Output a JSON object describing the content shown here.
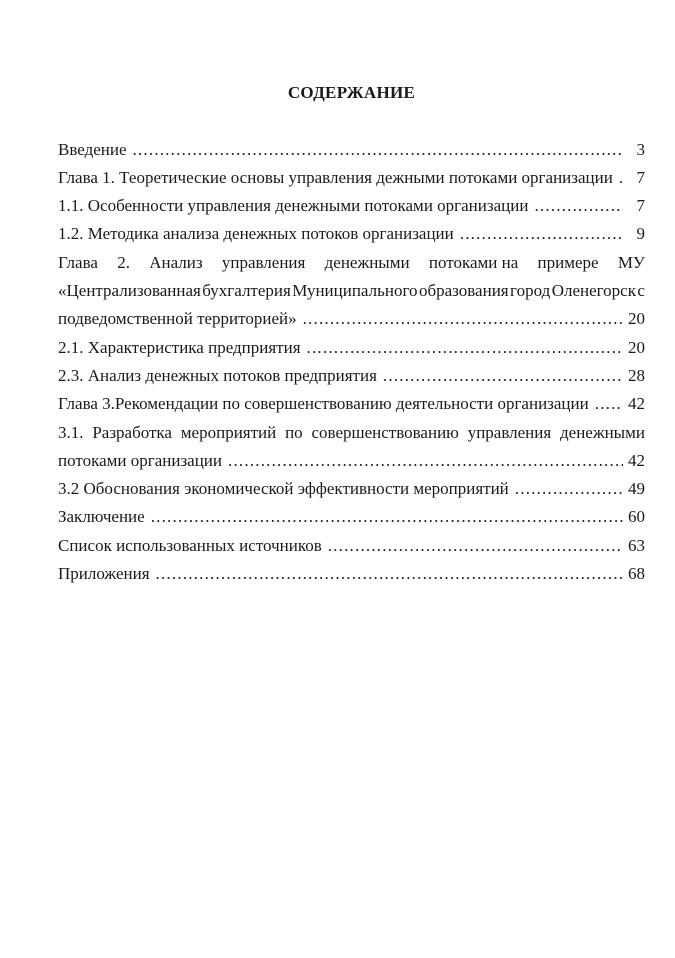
{
  "page": {
    "title": "СОДЕРЖАНИЕ"
  },
  "toc": {
    "rows": [
      {
        "type": "entry",
        "text": "Введение",
        "page": "3"
      },
      {
        "type": "entry",
        "text": "Глава 1. Теоретические основы управления дежными потоками организации",
        "page": "7"
      },
      {
        "type": "entry",
        "text": "1.1. Особенности управления денежными потоками организации",
        "page": "7"
      },
      {
        "type": "entry",
        "text": "1.2. Методика анализа денежных потоков организации",
        "page": "9"
      },
      {
        "type": "justified",
        "text": "Глава 2. Анализ управления денежными потоками на примере МУ"
      },
      {
        "type": "justified",
        "text": "«Централизованная бухгалтерия Муниципального образования город Оленегорск с"
      },
      {
        "type": "entry",
        "text": "подведомственной территорией»",
        "page": "20"
      },
      {
        "type": "entry",
        "text": "2.1. Характеристика предприятия",
        "page": "20"
      },
      {
        "type": "entry",
        "text": "2.3. Анализ денежных потоков предприятия",
        "page": "28"
      },
      {
        "type": "entry",
        "text": "Глава 3.Рекомендации по совершенствованию деятельности организации",
        "page": "42"
      },
      {
        "type": "justified",
        "text": "3.1. Разработка мероприятий по совершенствованию управления денежными"
      },
      {
        "type": "entry",
        "text": "потоками организации",
        "page": "42"
      },
      {
        "type": "entry",
        "text": "3.2 Обоснования экономической эффективности мероприятий",
        "page": "49"
      },
      {
        "type": "entry",
        "text": "Заключение",
        "page": "60"
      },
      {
        "type": "entry",
        "text": "Список использованных источников",
        "page": "63"
      },
      {
        "type": "entry",
        "text": "Приложения",
        "page": "68"
      }
    ]
  }
}
